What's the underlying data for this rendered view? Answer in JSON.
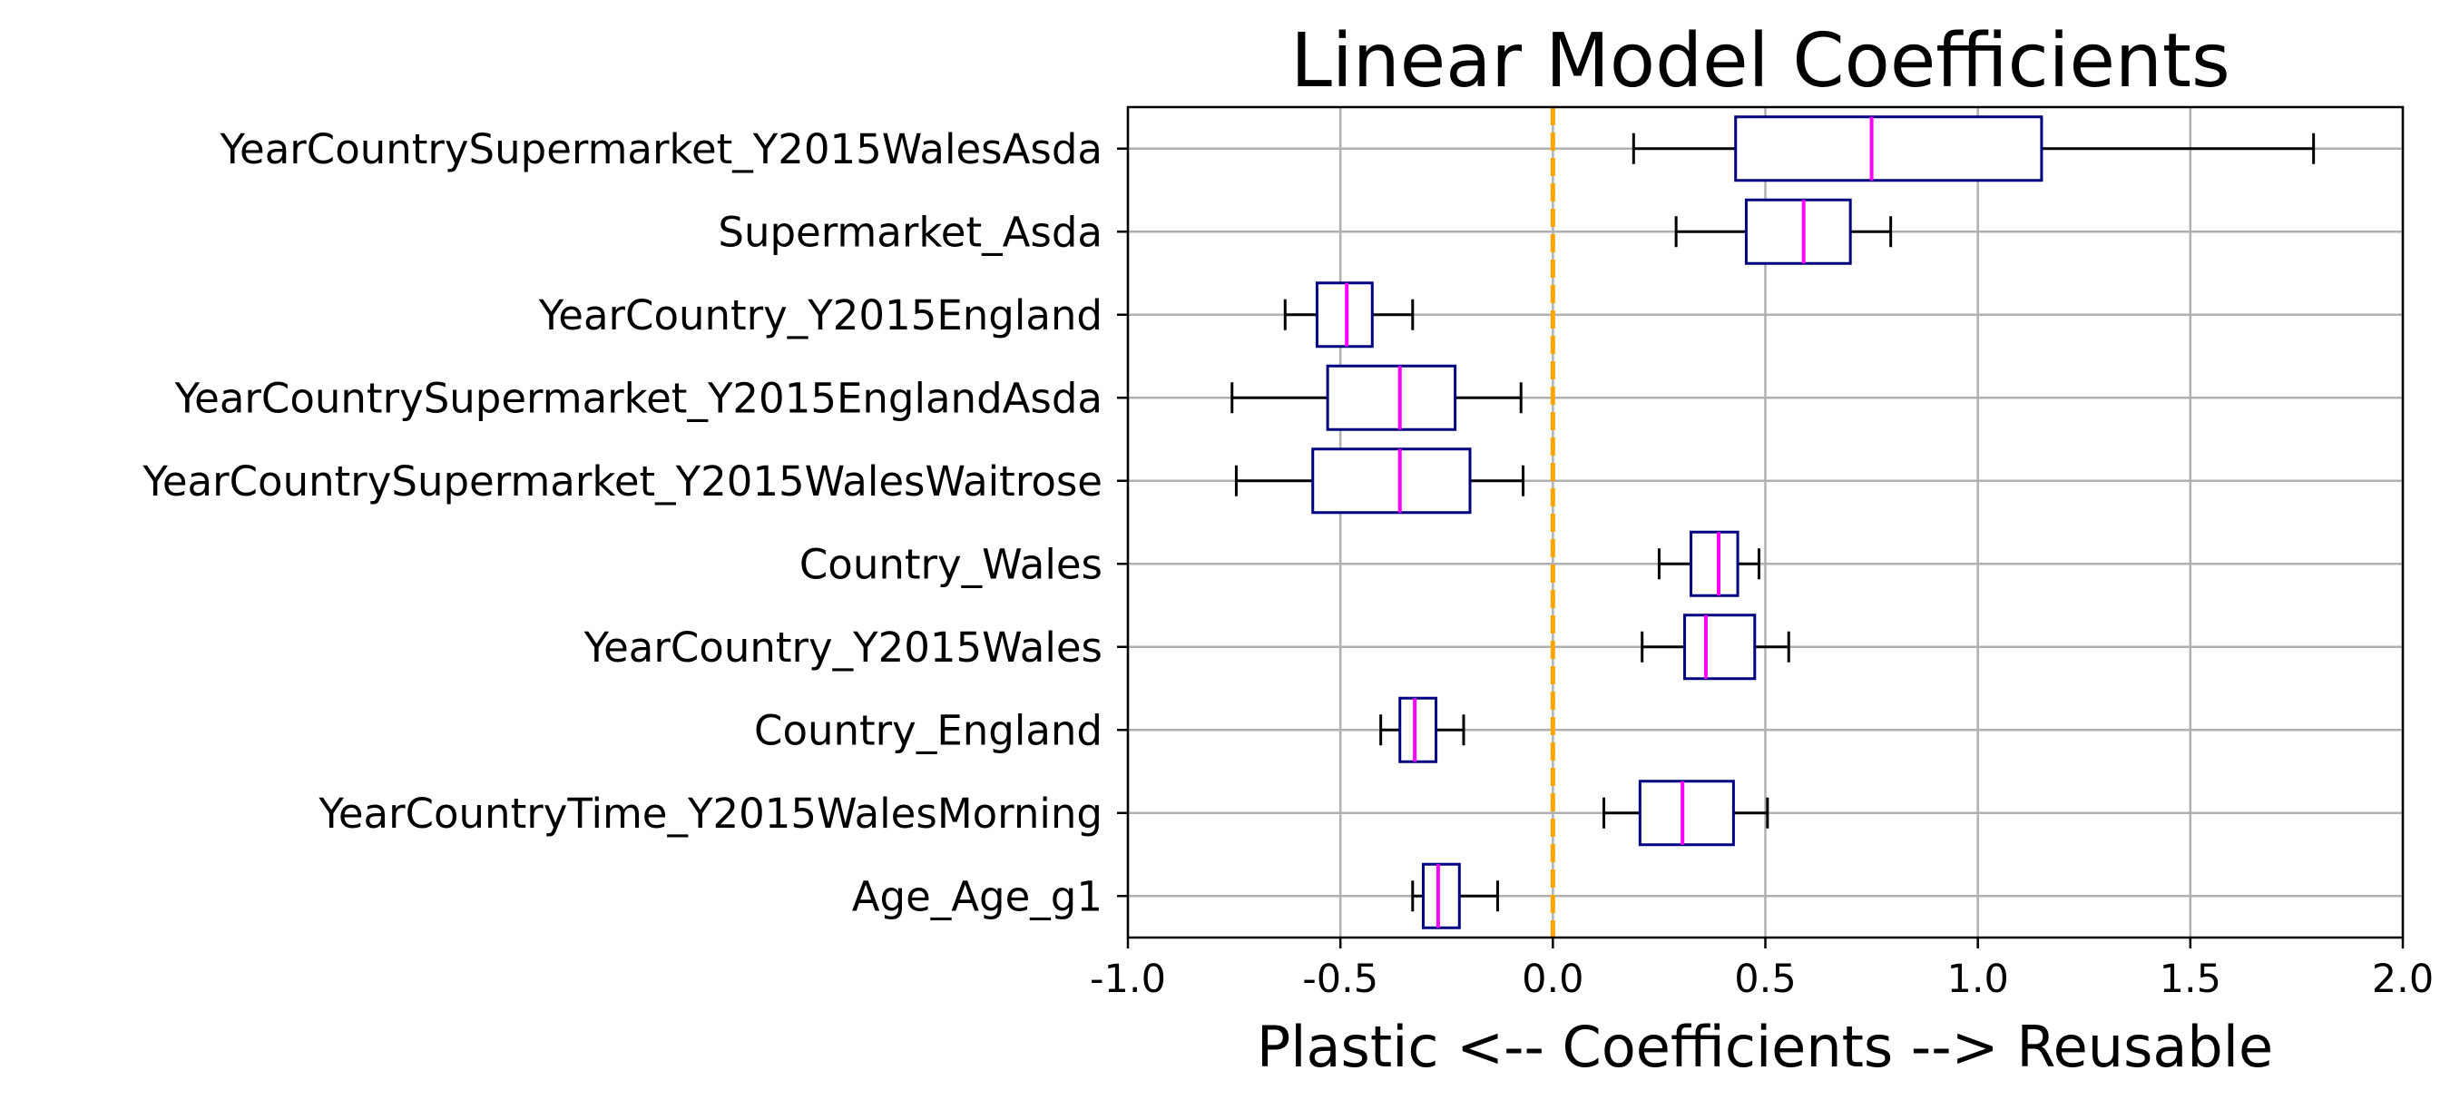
{
  "chart_data": {
    "type": "boxplot",
    "orientation": "horizontal",
    "title": "Linear Model Coefficients",
    "xlabel": "Plastic <-- Coefficients --> Reusable",
    "ylabel": "",
    "xlim": [
      -1.0,
      2.0
    ],
    "xticks": [
      -1.0,
      -0.5,
      0.0,
      0.5,
      1.0,
      1.5,
      2.0
    ],
    "xtick_labels": [
      "-1.0",
      "-0.5",
      "0.0",
      "0.5",
      "1.0",
      "1.5",
      "2.0"
    ],
    "grid": true,
    "reference_line": {
      "x": 0.0,
      "style": "dashed",
      "color": "#ffa500"
    },
    "colors": {
      "box": "#000080",
      "median": "#ff00ff",
      "whisker": "#000000",
      "grid": "#b0b0b0",
      "axes": "#000000"
    },
    "categories": [
      {
        "label": "YearCountrySupermarket_Y2015WalesAsda",
        "whislo": 0.19,
        "q1": 0.43,
        "median": 0.75,
        "q3": 1.15,
        "whishi": 1.79
      },
      {
        "label": "Supermarket_Asda",
        "whislo": 0.29,
        "q1": 0.455,
        "median": 0.59,
        "q3": 0.7,
        "whishi": 0.795
      },
      {
        "label": "YearCountry_Y2015England",
        "whislo": -0.63,
        "q1": -0.555,
        "median": -0.485,
        "q3": -0.425,
        "whishi": -0.33
      },
      {
        "label": "YearCountrySupermarket_Y2015EnglandAsda",
        "whislo": -0.755,
        "q1": -0.53,
        "median": -0.36,
        "q3": -0.23,
        "whishi": -0.075
      },
      {
        "label": "YearCountrySupermarket_Y2015WalesWaitrose",
        "whislo": -0.745,
        "q1": -0.565,
        "median": -0.36,
        "q3": -0.195,
        "whishi": -0.07
      },
      {
        "label": "Country_Wales",
        "whislo": 0.25,
        "q1": 0.325,
        "median": 0.39,
        "q3": 0.435,
        "whishi": 0.485
      },
      {
        "label": "YearCountry_Y2015Wales",
        "whislo": 0.21,
        "q1": 0.31,
        "median": 0.36,
        "q3": 0.475,
        "whishi": 0.555
      },
      {
        "label": "Country_England",
        "whislo": -0.405,
        "q1": -0.36,
        "median": -0.325,
        "q3": -0.275,
        "whishi": -0.21
      },
      {
        "label": "YearCountryTime_Y2015WalesMorning",
        "whislo": 0.12,
        "q1": 0.205,
        "median": 0.305,
        "q3": 0.425,
        "whishi": 0.505
      },
      {
        "label": "Age_Age_g1",
        "whislo": -0.33,
        "q1": -0.305,
        "median": -0.27,
        "q3": -0.22,
        "whishi": -0.13
      }
    ]
  }
}
